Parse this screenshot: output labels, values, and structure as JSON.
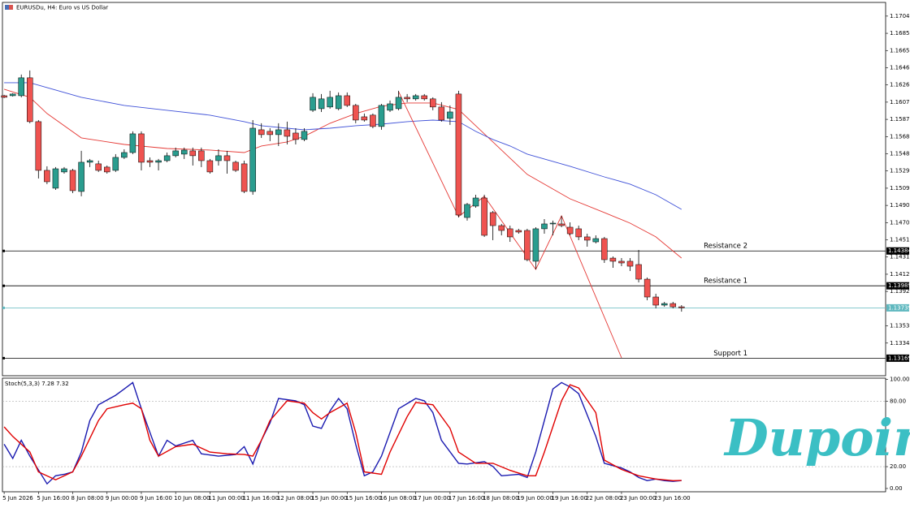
{
  "chart_data": [
    {
      "type": "candlestick",
      "title": "EURUSDu, H4:  Euro vs US Dollar",
      "xlim": [
        -0.2,
        102.8
      ],
      "ylim": [
        1.1297,
        1.172
      ],
      "xticks": [
        {
          "value": 0,
          "label": "5 Jun 2026"
        },
        {
          "value": 4,
          "label": "5 Jun 16:00"
        },
        {
          "value": 8,
          "label": "8 Jun 08:00"
        },
        {
          "value": 12,
          "label": "9 Jun 00:00"
        },
        {
          "value": 16,
          "label": "9 Jun 16:00"
        },
        {
          "value": 20,
          "label": "10 Jun 08:00"
        },
        {
          "value": 24,
          "label": "11 Jun 00:00"
        },
        {
          "value": 28,
          "label": "11 Jun 16:00"
        },
        {
          "value": 32,
          "label": "12 Jun 08:00"
        },
        {
          "value": 36,
          "label": "15 Jun 00:00"
        },
        {
          "value": 40,
          "label": "15 Jun 16:00"
        },
        {
          "value": 44,
          "label": "16 Jun 08:00"
        },
        {
          "value": 48,
          "label": "17 Jun 00:00"
        },
        {
          "value": 52,
          "label": "17 Jun 16:00"
        },
        {
          "value": 56,
          "label": "18 Jun 08:00"
        },
        {
          "value": 60,
          "label": "19 Jun 00:00"
        },
        {
          "value": 64,
          "label": "19 Jun 16:00"
        },
        {
          "value": 68,
          "label": "22 Jun 08:00"
        },
        {
          "value": 72,
          "label": "23 Jun 00:00"
        },
        {
          "value": 76,
          "label": "23 Jun 16:00"
        }
      ],
      "yticks": [
        {
          "value": 1.17045,
          "label": "1.17045"
        },
        {
          "value": 1.1685,
          "label": "1.16850"
        },
        {
          "value": 1.16655,
          "label": "1.16655"
        },
        {
          "value": 1.1646,
          "label": "1.16460"
        },
        {
          "value": 1.16265,
          "label": "1.16265"
        },
        {
          "value": 1.1607,
          "label": "1.16070"
        },
        {
          "value": 1.15875,
          "label": "1.15875"
        },
        {
          "value": 1.1568,
          "label": "1.15680"
        },
        {
          "value": 1.15485,
          "label": "1.15485"
        },
        {
          "value": 1.1529,
          "label": "1.15290"
        },
        {
          "value": 1.15095,
          "label": "1.15095"
        },
        {
          "value": 1.149,
          "label": "1.14900"
        },
        {
          "value": 1.14705,
          "label": "1.14705"
        },
        {
          "value": 1.1451,
          "label": "1.14510"
        },
        {
          "value": 1.14315,
          "label": "1.14315"
        },
        {
          "value": 1.1412,
          "label": "1.14120"
        },
        {
          "value": 1.13925,
          "label": "1.13925"
        },
        {
          "value": 1.13535,
          "label": "1.13535"
        },
        {
          "value": 1.1334,
          "label": "1.13340"
        }
      ],
      "up_color": "#2a9d8f",
      "down_color": "#ef5350",
      "candles": {
        "open": [
          1.16143,
          1.16143,
          1.16143,
          1.16346,
          1.15849,
          1.15297,
          1.15095,
          1.15279,
          1.15297,
          1.15058,
          1.15389,
          1.15371,
          1.15334,
          1.15297,
          1.15444,
          1.15499,
          1.15711,
          1.15407,
          1.15389,
          1.15407,
          1.15463,
          1.15481,
          1.15518,
          1.15518,
          1.15407,
          1.15407,
          1.15463,
          1.15389,
          1.15371,
          1.15058,
          1.15757,
          1.15739,
          1.15702,
          1.15757,
          1.1572,
          1.15647,
          1.15978,
          1.15996,
          1.16015,
          1.15996,
          1.16143,
          1.16033,
          1.15904,
          1.15923,
          1.15794,
          1.15978,
          1.15996,
          1.16125,
          1.16107,
          1.16143,
          1.16107,
          1.16015,
          1.15886,
          1.16162,
          1.14763,
          1.14892,
          1.14984,
          1.14819,
          1.14671,
          1.14635,
          1.14616,
          1.14616,
          1.14267,
          1.14635,
          1.1469,
          1.1469,
          1.14653,
          1.14635,
          1.14543,
          1.14487,
          1.14524,
          1.14303,
          1.14267,
          1.14267,
          1.1423,
          1.14064,
          1.13862,
          1.1377,
          1.13788,
          1.13751
        ],
        "high": [
          1.16153,
          1.16171,
          1.16383,
          1.16429,
          1.15867,
          1.15343,
          1.15334,
          1.15334,
          1.15315,
          1.15518,
          1.15426,
          1.15407,
          1.15352,
          1.15481,
          1.15536,
          1.15739,
          1.15739,
          1.15444,
          1.15426,
          1.15499,
          1.15555,
          1.15555,
          1.15555,
          1.15555,
          1.15426,
          1.15536,
          1.15518,
          1.15407,
          1.15407,
          1.15867,
          1.15831,
          1.15775,
          1.15831,
          1.15849,
          1.15775,
          1.15775,
          1.16171,
          1.16162,
          1.16199,
          1.1618,
          1.1618,
          1.16051,
          1.15941,
          1.15941,
          1.16051,
          1.16088,
          1.16199,
          1.16162,
          1.16162,
          1.16162,
          1.16125,
          1.1607,
          1.16033,
          1.16199,
          1.14929,
          1.15021,
          1.15021,
          1.14837,
          1.1469,
          1.14671,
          1.14635,
          1.14635,
          1.14653,
          1.14745,
          1.14727,
          1.14782,
          1.14708,
          1.14671,
          1.14579,
          1.14561,
          1.14543,
          1.14322,
          1.14303,
          1.14303,
          1.14395,
          1.14083,
          1.13899,
          1.13807,
          1.13807,
          1.1377
        ],
        "low": [
          1.16116,
          1.16134,
          1.16125,
          1.15831,
          1.15205,
          1.15141,
          1.15076,
          1.1526,
          1.15039,
          1.15003,
          1.15334,
          1.15279,
          1.1526,
          1.15279,
          1.15426,
          1.15481,
          1.15297,
          1.15334,
          1.15297,
          1.15389,
          1.15444,
          1.15426,
          1.15352,
          1.15334,
          1.1526,
          1.15352,
          1.1526,
          1.15279,
          1.15039,
          1.15021,
          1.15665,
          1.15628,
          1.15573,
          1.15591,
          1.15591,
          1.15628,
          1.15959,
          1.15959,
          1.15996,
          1.15978,
          1.16015,
          1.15831,
          1.15849,
          1.15775,
          1.15757,
          1.15959,
          1.15978,
          1.1607,
          1.16088,
          1.16088,
          1.15978,
          1.15849,
          1.15812,
          1.14763,
          1.14727,
          1.14874,
          1.14543,
          1.14506,
          1.14561,
          1.14487,
          1.14579,
          1.14267,
          1.14175,
          1.14579,
          1.14561,
          1.14653,
          1.14561,
          1.14506,
          1.14432,
          1.14469,
          1.14248,
          1.14193,
          1.14211,
          1.14156,
          1.14027,
          1.13825,
          1.13733,
          1.13751,
          1.13733,
          1.13696
        ],
        "close": [
          1.16125,
          1.16162,
          1.16346,
          1.15849,
          1.15297,
          1.15168,
          1.15315,
          1.15315,
          1.15067,
          1.15389,
          1.15407,
          1.15297,
          1.15279,
          1.15444,
          1.15499,
          1.15711,
          1.15389,
          1.15389,
          1.15407,
          1.15463,
          1.15518,
          1.15527,
          1.15463,
          1.15407,
          1.15279,
          1.15463,
          1.15407,
          1.15297,
          1.15058,
          1.15775,
          1.15702,
          1.15702,
          1.15757,
          1.15683,
          1.15647,
          1.15739,
          1.16125,
          1.16107,
          1.16125,
          1.16143,
          1.16033,
          1.15867,
          1.15867,
          1.15794,
          1.16033,
          1.16051,
          1.16125,
          1.16107,
          1.16143,
          1.16107,
          1.16015,
          1.15867,
          1.15959,
          1.14791,
          1.14911,
          1.14984,
          1.14561,
          1.14671,
          1.14616,
          1.14543,
          1.14598,
          1.14285,
          1.14635,
          1.1469,
          1.14699,
          1.14671,
          1.14579,
          1.14543,
          1.14506,
          1.14524,
          1.14285,
          1.14267,
          1.14248,
          1.14211,
          1.14064,
          1.13862,
          1.1377,
          1.13788,
          1.13751,
          1.13739
        ]
      },
      "overlays": [
        {
          "color": "#e53935",
          "x": [
            0,
            3,
            5,
            9,
            14,
            19,
            24,
            28,
            30,
            33,
            35,
            38,
            41,
            44,
            47,
            50,
            53,
            55,
            57,
            59,
            61,
            66,
            70,
            73,
            76,
            79
          ],
          "values": [
            1.16217,
            1.16125,
            1.15941,
            1.15665,
            1.15591,
            1.15545,
            1.15527,
            1.15499,
            1.15573,
            1.15619,
            1.15683,
            1.15831,
            1.15941,
            1.16024,
            1.16061,
            1.16061,
            1.15987,
            1.15803,
            1.15619,
            1.15435,
            1.15251,
            1.14975,
            1.14819,
            1.14699,
            1.14543,
            1.14303
          ]
        },
        {
          "color": "#3f51d8",
          "x": [
            0,
            3,
            5,
            9,
            14,
            19,
            24,
            28,
            30,
            33,
            35,
            38,
            41,
            44,
            47,
            50,
            53,
            55,
            57,
            59,
            61,
            66,
            70,
            73,
            76,
            79
          ],
          "values": [
            1.16291,
            1.16291,
            1.16235,
            1.16125,
            1.16033,
            1.15978,
            1.15923,
            1.15849,
            1.15803,
            1.15775,
            1.15757,
            1.15775,
            1.15803,
            1.15821,
            1.15849,
            1.15867,
            1.15849,
            1.15739,
            1.15647,
            1.15573,
            1.15481,
            1.15343,
            1.15223,
            1.15141,
            1.15021,
            1.14855
          ]
        },
        {
          "color": "#e53935",
          "x": [
            46,
            53,
            56,
            62,
            65,
            72
          ],
          "values": [
            1.16189,
            1.14773,
            1.15003,
            1.14175,
            1.14782,
            1.13172
          ]
        }
      ],
      "levels": [
        {
          "name": "Resistance 2",
          "value": 1.14384,
          "color": "#000000"
        },
        {
          "name": "Resistance 1",
          "value": 1.13989,
          "color": "#000000"
        },
        {
          "value": 1.13739,
          "color": "#5fb8bf"
        },
        {
          "name": "Support 1",
          "value": 1.13169,
          "color": "#000000"
        }
      ]
    },
    {
      "type": "line",
      "title": "Stoch(5,3,3)",
      "xlim": [
        -0.2,
        102.8
      ],
      "ylim": [
        -3,
        101
      ],
      "yticks": [
        {
          "value": 100,
          "label": "100.00"
        },
        {
          "value": 80,
          "label": "80.00"
        },
        {
          "value": 20,
          "label": "20.00"
        },
        {
          "value": 0,
          "label": "0.00"
        }
      ],
      "levels": [
        80,
        20
      ],
      "series": [
        {
          "color": "#1a1ab0",
          "x": [
            0,
            1,
            2,
            3,
            5,
            6,
            7,
            8,
            9,
            10,
            11,
            13,
            14,
            15,
            16,
            18,
            19,
            20,
            22,
            23,
            25,
            27,
            28,
            29,
            30,
            31,
            32,
            34,
            35,
            36,
            37,
            38,
            39,
            40,
            41,
            42,
            43,
            44,
            46,
            48,
            49,
            50,
            51,
            53,
            54,
            56,
            57,
            58,
            60,
            61,
            62,
            63,
            64,
            65,
            66,
            67,
            69,
            70,
            72,
            73,
            74,
            75,
            76,
            77,
            78,
            79
          ],
          "values": [
            40.5,
            27.5,
            44.1,
            29.6,
            4.3,
            11.6,
            13.0,
            15.2,
            33.3,
            62.2,
            76.6,
            85.3,
            91.1,
            97,
            73.0,
            29.6,
            44.1,
            39.0,
            44.1,
            31.8,
            29.6,
            31.1,
            38.3,
            22.4,
            44.1,
            60.0,
            82.4,
            80.3,
            76.6,
            57.1,
            55.0,
            70.9,
            82.4,
            73.0,
            40.5,
            11.6,
            15.2,
            29.6,
            73.0,
            82.4,
            80.3,
            69.4,
            44.1,
            23.1,
            22.4,
            24.6,
            20.2,
            11.6,
            13.0,
            10.1,
            33.3,
            62.2,
            91.1,
            97,
            93,
            86.8,
            47.7,
            23.1,
            18.8,
            15.2,
            10.1,
            7.2,
            8.7,
            7.2,
            6.5,
            7.28
          ]
        },
        {
          "color": "#e00000",
          "x": [
            0,
            1,
            3,
            4,
            6,
            8,
            9,
            11,
            12,
            14,
            15,
            16,
            17,
            18,
            20,
            22,
            24,
            26,
            28,
            29,
            30,
            31,
            33,
            35,
            36,
            37,
            38,
            40,
            41,
            42,
            44,
            45,
            47,
            48,
            50,
            52,
            53,
            55,
            57,
            59,
            61,
            62,
            63,
            65,
            66,
            67,
            69,
            70,
            72,
            74,
            76,
            78,
            79
          ],
          "values": [
            56.4,
            47.7,
            33.3,
            15.2,
            8.0,
            15.2,
            29.6,
            62.2,
            73.0,
            76.6,
            78.1,
            73.0,
            44.1,
            29.6,
            38.3,
            40.5,
            33.3,
            31.8,
            31.1,
            29.6,
            44.1,
            62.2,
            80.3,
            78.1,
            69.4,
            63.6,
            69.4,
            78.1,
            51.3,
            15.2,
            13.0,
            33.3,
            65.8,
            78.8,
            76.6,
            55.0,
            33.3,
            23.1,
            23.1,
            16.6,
            11.6,
            11.6,
            33.3,
            80.3,
            95,
            92.0,
            69.4,
            26.0,
            17.4,
            11.6,
            8.7,
            7.2,
            7.32
          ]
        }
      ]
    }
  ],
  "logo": "Dupoin"
}
